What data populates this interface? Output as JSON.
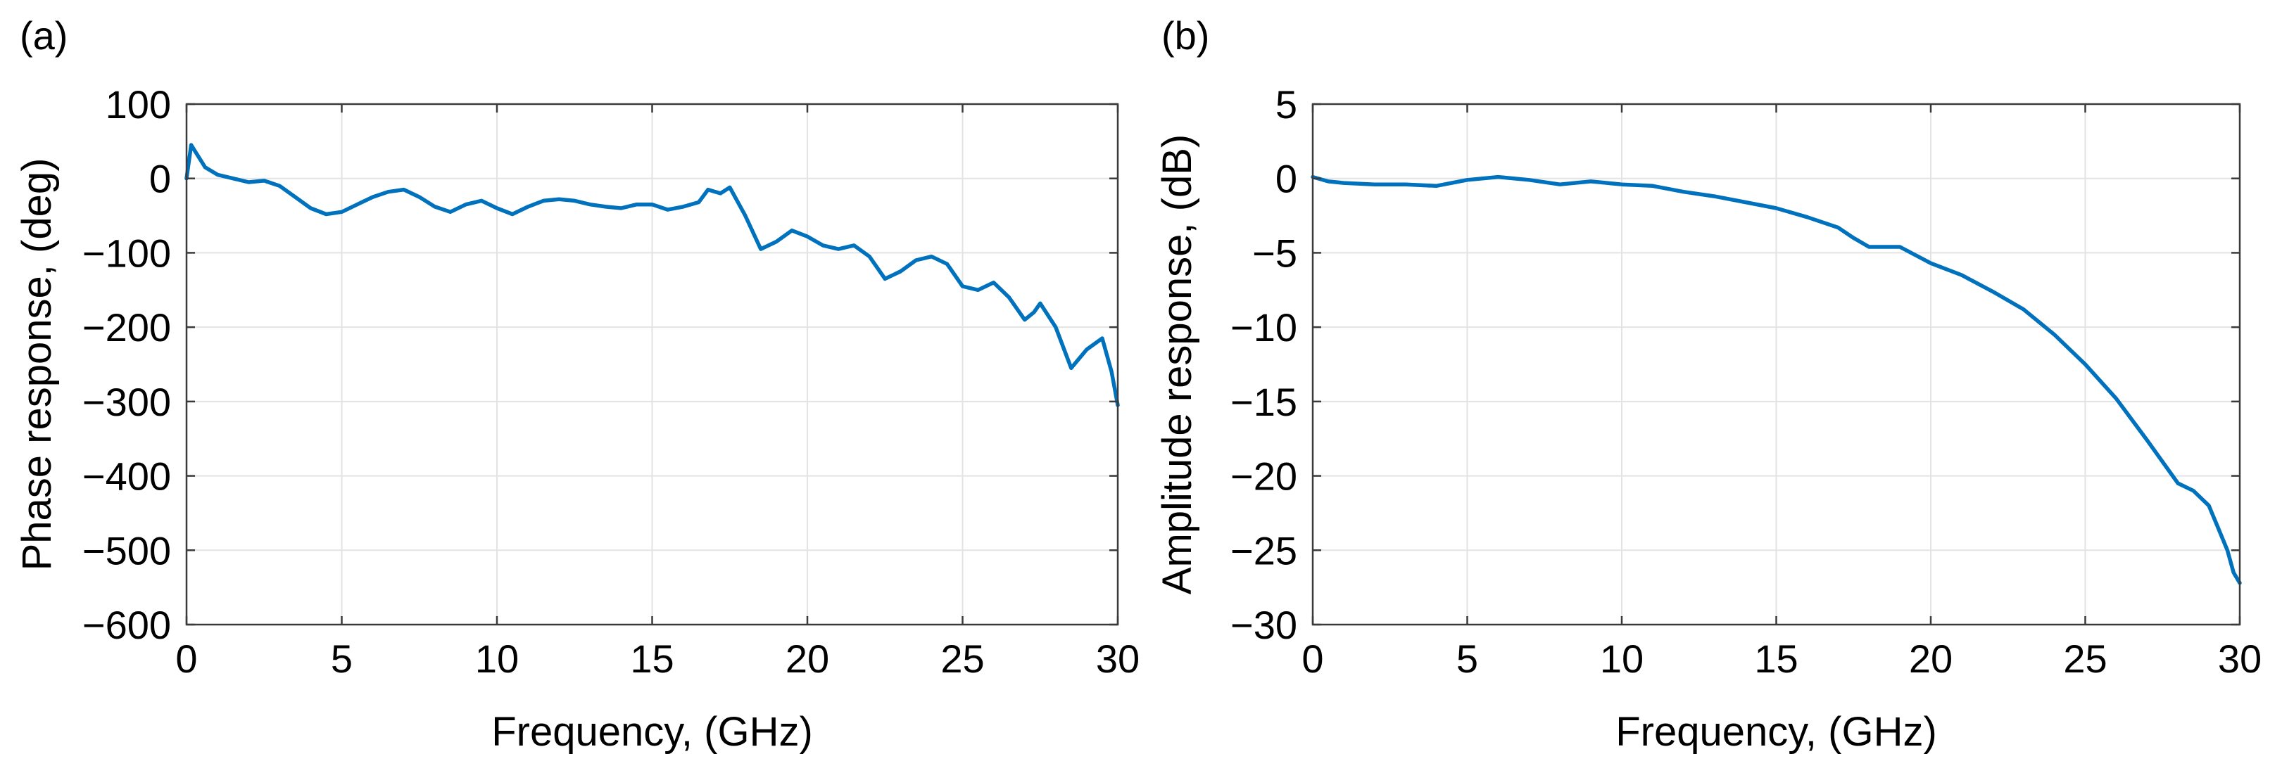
{
  "figure": {
    "colors": {
      "series": "#0072bd",
      "grid": "#e3e3e3",
      "axis": "#3a3a3a"
    }
  },
  "chart_data": [
    {
      "panel_label": "(a)",
      "type": "line",
      "xlabel": "Frequency, (GHz)",
      "ylabel": "Phase response, (deg)",
      "xlim": [
        0,
        30
      ],
      "ylim": [
        -600,
        100
      ],
      "xticks": [
        0,
        5,
        10,
        15,
        20,
        25,
        30
      ],
      "yticks": [
        100,
        0,
        -100,
        -200,
        -300,
        -400,
        -500,
        -600
      ],
      "xtick_labels": [
        "0",
        "5",
        "10",
        "15",
        "20",
        "25",
        "30"
      ],
      "ytick_labels": [
        "100",
        "0",
        "−100",
        "−200",
        "−300",
        "−400",
        "−500",
        "−600"
      ],
      "grid": true,
      "series": [
        {
          "color": "#0072bd",
          "x": [
            0,
            0.15,
            0.3,
            0.6,
            1.0,
            1.5,
            2.0,
            2.5,
            3.0,
            3.5,
            4.0,
            4.5,
            5.0,
            5.5,
            6.0,
            6.5,
            7.0,
            7.5,
            8.0,
            8.5,
            9.0,
            9.5,
            10.0,
            10.5,
            11.0,
            11.5,
            12.0,
            12.5,
            13.0,
            13.5,
            14.0,
            14.5,
            15.0,
            15.5,
            16.0,
            16.5,
            16.8,
            17.2,
            17.5,
            18.0,
            18.5,
            19.0,
            19.5,
            20.0,
            20.5,
            21.0,
            21.5,
            22.0,
            22.5,
            23.0,
            23.5,
            24.0,
            24.5,
            25.0,
            25.5,
            26.0,
            26.5,
            27.0,
            27.3,
            27.5,
            28.0,
            28.5,
            29.0,
            29.5,
            29.8,
            30.0
          ],
          "y": [
            0,
            45,
            35,
            15,
            5,
            0,
            -5,
            -3,
            -10,
            -25,
            -40,
            -48,
            -45,
            -35,
            -25,
            -18,
            -15,
            -25,
            -38,
            -45,
            -35,
            -30,
            -40,
            -48,
            -38,
            -30,
            -28,
            -30,
            -35,
            -38,
            -40,
            -35,
            -35,
            -42,
            -38,
            -32,
            -15,
            -20,
            -12,
            -50,
            -95,
            -85,
            -70,
            -78,
            -90,
            -95,
            -90,
            -105,
            -135,
            -125,
            -110,
            -105,
            -115,
            -145,
            -150,
            -140,
            -160,
            -190,
            -180,
            -168,
            -200,
            -255,
            -230,
            -215,
            -260,
            -305
          ]
        }
      ]
    },
    {
      "panel_label": "(b)",
      "type": "line",
      "xlabel": "Frequency, (GHz)",
      "ylabel": "Amplitude response, (dB)",
      "xlim": [
        0,
        30
      ],
      "ylim": [
        -30,
        5
      ],
      "xticks": [
        0,
        5,
        10,
        15,
        20,
        25,
        30
      ],
      "yticks": [
        5,
        0,
        -5,
        -10,
        -15,
        -20,
        -25,
        -30
      ],
      "xtick_labels": [
        "0",
        "5",
        "10",
        "15",
        "20",
        "25",
        "30"
      ],
      "ytick_labels": [
        "5",
        "0",
        "−5",
        "−10",
        "−15",
        "−20",
        "−25",
        "−30"
      ],
      "grid": true,
      "series": [
        {
          "color": "#0072bd",
          "x": [
            0,
            0.5,
            1,
            2,
            3,
            4,
            5,
            6,
            7,
            8,
            9,
            10,
            11,
            12,
            13,
            14,
            15,
            16,
            17,
            17.5,
            18,
            19,
            20,
            21,
            22,
            23,
            24,
            25,
            26,
            27,
            28,
            28.5,
            29,
            29.3,
            29.6,
            29.8,
            30.0
          ],
          "y": [
            0.1,
            -0.2,
            -0.3,
            -0.4,
            -0.4,
            -0.5,
            -0.1,
            0.1,
            -0.1,
            -0.4,
            -0.2,
            -0.4,
            -0.5,
            -0.9,
            -1.2,
            -1.6,
            -2.0,
            -2.6,
            -3.3,
            -4.0,
            -4.6,
            -4.6,
            -5.7,
            -6.5,
            -7.6,
            -8.8,
            -10.5,
            -12.5,
            -14.8,
            -17.6,
            -20.5,
            -21.0,
            -22.0,
            -23.5,
            -25.0,
            -26.5,
            -27.2
          ]
        }
      ]
    }
  ]
}
